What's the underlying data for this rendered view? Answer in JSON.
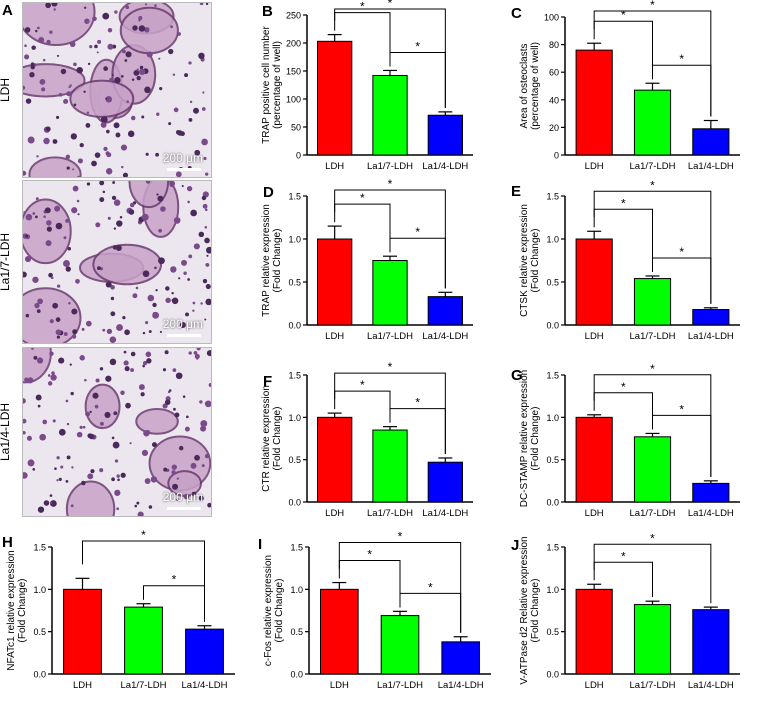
{
  "panel_a": {
    "letter": "A",
    "images": [
      {
        "label": "LDH",
        "scale_label": "200 μm"
      },
      {
        "label": "La1/7-LDH",
        "scale_label": "200 μm"
      },
      {
        "label": "La1/4-LDH",
        "scale_label": "200 μm"
      }
    ]
  },
  "colors": {
    "LDH": "#ff0000",
    "La1/7-LDH": "#00ff00",
    "La1/4-LDH": "#0000ff"
  },
  "chart_data": [
    {
      "id": "B",
      "type": "bar",
      "letter": "B",
      "ylabel": [
        "TRAP positive cell number",
        "(percentage of well)"
      ],
      "categories": [
        "LDH",
        "La1/7-LDH",
        "La1/4-LDH"
      ],
      "values": [
        203,
        142,
        71
      ],
      "errors": [
        12,
        9,
        6
      ],
      "ylim": [
        0,
        250
      ],
      "yticks": [
        0,
        50,
        100,
        150,
        200,
        250
      ],
      "ytick_labels": [
        "0",
        "50",
        "100",
        "150",
        "200",
        "250"
      ],
      "significance": [
        {
          "from": 0,
          "to": 1,
          "label": "*"
        },
        {
          "from": 0,
          "to": 2,
          "label": "*"
        },
        {
          "from": 1,
          "to": 2,
          "label": "*"
        }
      ]
    },
    {
      "id": "C",
      "type": "bar",
      "letter": "C",
      "ylabel": [
        "Area of osteoclasts",
        "(percentage of well)"
      ],
      "categories": [
        "LDH",
        "La1/7-LDH",
        "La1/4-LDH"
      ],
      "values": [
        76,
        47,
        19
      ],
      "errors": [
        5,
        5,
        6
      ],
      "ylim": [
        0,
        100
      ],
      "yticks": [
        0,
        20,
        40,
        60,
        80,
        100
      ],
      "ytick_labels": [
        "0",
        "20",
        "40",
        "60",
        "80",
        "100"
      ],
      "significance": [
        {
          "from": 0,
          "to": 1,
          "label": "*"
        },
        {
          "from": 0,
          "to": 2,
          "label": "*"
        },
        {
          "from": 1,
          "to": 2,
          "label": "*"
        }
      ]
    },
    {
      "id": "D",
      "type": "bar",
      "letter": "D",
      "ylabel": [
        "TRAP relative expression",
        "(Fold Change)"
      ],
      "categories": [
        "LDH",
        "La1/7-LDH",
        "La1/4-LDH"
      ],
      "values": [
        1.0,
        0.75,
        0.33
      ],
      "errors": [
        0.15,
        0.05,
        0.05
      ],
      "ylim": [
        0,
        1.5
      ],
      "yticks": [
        0,
        0.5,
        1.0,
        1.5
      ],
      "ytick_labels": [
        "0.0",
        "0.5",
        "1.0",
        "1.5"
      ],
      "significance": [
        {
          "from": 0,
          "to": 1,
          "label": "*"
        },
        {
          "from": 0,
          "to": 2,
          "label": "*"
        },
        {
          "from": 1,
          "to": 2,
          "label": "*"
        }
      ]
    },
    {
      "id": "E",
      "type": "bar",
      "letter": "E",
      "ylabel": [
        "CTSK relative expression",
        "(Fold Change)"
      ],
      "categories": [
        "LDH",
        "La1/7-LDH",
        "La1/4-LDH"
      ],
      "values": [
        1.0,
        0.54,
        0.18
      ],
      "errors": [
        0.09,
        0.03,
        0.02
      ],
      "ylim": [
        0,
        1.5
      ],
      "yticks": [
        0,
        0.5,
        1.0,
        1.5
      ],
      "ytick_labels": [
        "0.0",
        "0.5",
        "1.0",
        "1.5"
      ],
      "significance": [
        {
          "from": 0,
          "to": 1,
          "label": "*"
        },
        {
          "from": 0,
          "to": 2,
          "label": "*"
        },
        {
          "from": 1,
          "to": 2,
          "label": "*"
        }
      ]
    },
    {
      "id": "F",
      "type": "bar",
      "letter": "F",
      "ylabel": [
        "CTR relative expression",
        "(Fold Change)"
      ],
      "categories": [
        "LDH",
        "La1/7-LDH",
        "La1/4-LDH"
      ],
      "values": [
        1.0,
        0.85,
        0.47
      ],
      "errors": [
        0.05,
        0.04,
        0.05
      ],
      "ylim": [
        0,
        1.5
      ],
      "yticks": [
        0,
        0.5,
        1.0,
        1.5
      ],
      "ytick_labels": [
        "0.0",
        "0.5",
        "1.0",
        "1.5"
      ],
      "significance": [
        {
          "from": 0,
          "to": 1,
          "label": "*"
        },
        {
          "from": 0,
          "to": 2,
          "label": "*"
        },
        {
          "from": 1,
          "to": 2,
          "label": "*"
        }
      ]
    },
    {
      "id": "G",
      "type": "bar",
      "letter": "G",
      "ylabel": [
        "DC-STAMP relative expression",
        "(Fold Change)"
      ],
      "categories": [
        "LDH",
        "La1/7-LDH",
        "La1/4-LDH"
      ],
      "values": [
        1.0,
        0.77,
        0.22
      ],
      "errors": [
        0.03,
        0.04,
        0.03
      ],
      "ylim": [
        0,
        1.5
      ],
      "yticks": [
        0,
        0.5,
        1.0,
        1.5
      ],
      "ytick_labels": [
        "0.0",
        "0.5",
        "1.0",
        "1.5"
      ],
      "significance": [
        {
          "from": 0,
          "to": 1,
          "label": "*"
        },
        {
          "from": 0,
          "to": 2,
          "label": "*"
        },
        {
          "from": 1,
          "to": 2,
          "label": "*"
        }
      ]
    },
    {
      "id": "H",
      "type": "bar",
      "letter": "H",
      "ylabel": [
        "NFATc1 relative expression",
        "(Fold Change)"
      ],
      "categories": [
        "LDH",
        "La1/7-LDH",
        "La1/4-LDH"
      ],
      "values": [
        1.0,
        0.79,
        0.53
      ],
      "errors": [
        0.13,
        0.04,
        0.04
      ],
      "ylim": [
        0,
        1.5
      ],
      "yticks": [
        0,
        0.5,
        1.0,
        1.5
      ],
      "ytick_labels": [
        "0.0",
        "0.5",
        "1.0",
        "1.5"
      ],
      "significance": [
        {
          "from": 0,
          "to": 2,
          "label": "*"
        },
        {
          "from": 1,
          "to": 2,
          "label": "*"
        }
      ]
    },
    {
      "id": "I",
      "type": "bar",
      "letter": "I",
      "ylabel": [
        "c-Fos relative expression",
        "(Fold Change)"
      ],
      "categories": [
        "LDH",
        "La1/7-LDH",
        "La1/4-LDH"
      ],
      "values": [
        1.0,
        0.69,
        0.38
      ],
      "errors": [
        0.08,
        0.05,
        0.06
      ],
      "ylim": [
        0,
        1.5
      ],
      "yticks": [
        0,
        0.5,
        1.0,
        1.5
      ],
      "ytick_labels": [
        "0.0",
        "0.5",
        "1.0",
        "1.5"
      ],
      "significance": [
        {
          "from": 0,
          "to": 1,
          "label": "*"
        },
        {
          "from": 0,
          "to": 2,
          "label": "*"
        },
        {
          "from": 1,
          "to": 2,
          "label": "*"
        }
      ]
    },
    {
      "id": "J",
      "type": "bar",
      "letter": "J",
      "ylabel": [
        "V-ATPase d2 Relative expression",
        "(Fold Change)"
      ],
      "categories": [
        "LDH",
        "La1/7-LDH",
        "La1/4-LDH"
      ],
      "values": [
        1.0,
        0.82,
        0.76
      ],
      "errors": [
        0.06,
        0.04,
        0.03
      ],
      "ylim": [
        0,
        1.5
      ],
      "yticks": [
        0,
        0.5,
        1.0,
        1.5
      ],
      "ytick_labels": [
        "0.0",
        "0.5",
        "1.0",
        "1.5"
      ],
      "significance": [
        {
          "from": 0,
          "to": 1,
          "label": "*"
        },
        {
          "from": 0,
          "to": 2,
          "label": "*"
        }
      ]
    }
  ]
}
